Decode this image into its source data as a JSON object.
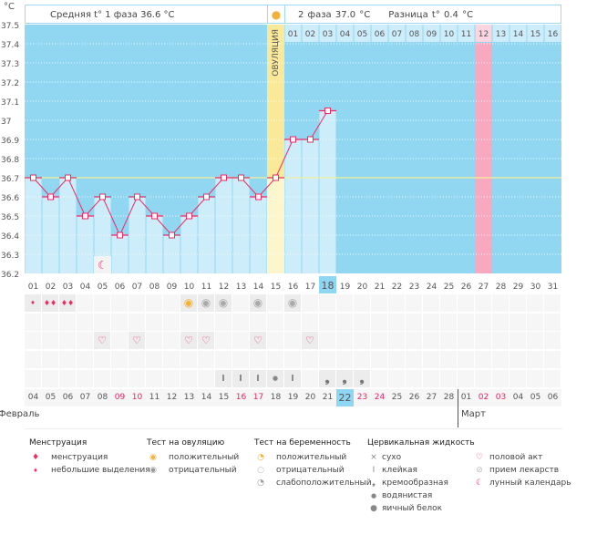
{
  "chart_data": {
    "type": "line",
    "ylabel": "°C",
    "ylim": [
      36.2,
      37.5
    ],
    "yticks": [
      "37.5",
      "37.4",
      "37.3",
      "37.2",
      "37.1",
      "37",
      "36.9",
      "36.8",
      "36.7",
      "36.6",
      "36.5",
      "36.4",
      "36.3",
      "36.2"
    ],
    "cycle_days": [
      "01",
      "02",
      "03",
      "04",
      "05",
      "06",
      "07",
      "08",
      "09",
      "10",
      "11",
      "12",
      "13",
      "14",
      "15",
      "16",
      "17",
      "18",
      "19",
      "20",
      "21",
      "22",
      "23",
      "24",
      "25",
      "26",
      "27",
      "28",
      "29",
      "30",
      "31"
    ],
    "values": [
      36.7,
      36.6,
      36.7,
      36.5,
      36.6,
      36.4,
      36.6,
      36.5,
      36.4,
      36.5,
      36.6,
      36.7,
      36.7,
      36.6,
      36.7,
      36.9,
      36.9,
      37.05
    ],
    "coverline": 36.7,
    "ovulation_day": 15,
    "ovulation_label": "ОВУЛЯЦИЯ",
    "phase2_days": [
      "01",
      "02",
      "03",
      "04",
      "05",
      "06",
      "07",
      "08",
      "09",
      "10",
      "11",
      "12",
      "13",
      "14",
      "15",
      "16"
    ],
    "expected_period_day": 27,
    "today_day": 18,
    "grid": true,
    "colors": {
      "background": "#92d7f2",
      "bar": "#cdedfb",
      "line": "#ef2b62",
      "ovulation": "#fbe99a",
      "period": "#f8a9bf",
      "coverline": "#f4f09a"
    }
  },
  "header": {
    "phase1": "Средняя t° 1 фаза 36.6 °C",
    "phase2": "2 фаза 37.0 °C",
    "diff": "Разница t° 0.4 °C"
  },
  "dates": [
    "04",
    "05",
    "06",
    "07",
    "08",
    "09",
    "10",
    "11",
    "12",
    "13",
    "14",
    "15",
    "16",
    "17",
    "18",
    "19",
    "20",
    "21",
    "22",
    "23",
    "24",
    "25",
    "26",
    "27",
    "28",
    "01",
    "02",
    "03",
    "04",
    "05",
    "06"
  ],
  "weekend_dates": [
    5,
    6,
    12,
    13,
    19,
    20,
    26,
    27
  ],
  "today_date_index": 18,
  "months": {
    "feb": "Февраль",
    "mar": "Март"
  },
  "markers": {
    "moon": [
      5
    ],
    "menstruation_light": [
      1
    ],
    "menstruation": [
      2,
      3
    ],
    "ovulation_positive": [
      10
    ],
    "ovulation_negative": [
      11,
      12,
      14,
      16
    ],
    "intercourse": [
      5,
      7,
      10,
      11,
      14,
      17
    ],
    "sticky": [
      12,
      13,
      14,
      16
    ],
    "watery": [
      15
    ],
    "creamy": [
      18,
      19,
      20
    ]
  },
  "legend": {
    "menstruation": {
      "title": "Менструация",
      "items": [
        "менструация",
        "небольшие выделения"
      ]
    },
    "ovulation_test": {
      "title": "Тест на овуляцию",
      "items": [
        "положительный",
        "отрицательный"
      ]
    },
    "pregnancy_test": {
      "title": "Тест на беременность",
      "items": [
        "положительный",
        "отрицательный",
        "слабоположительный"
      ]
    },
    "cervical": {
      "title": "Цервикальная жидкость",
      "items": [
        "сухо",
        "клейкая",
        "кремообразная",
        "водянистая",
        "яичный белок"
      ]
    },
    "other": {
      "items": [
        "половой акт",
        "прием лекарств",
        "лунный календарь"
      ]
    }
  }
}
